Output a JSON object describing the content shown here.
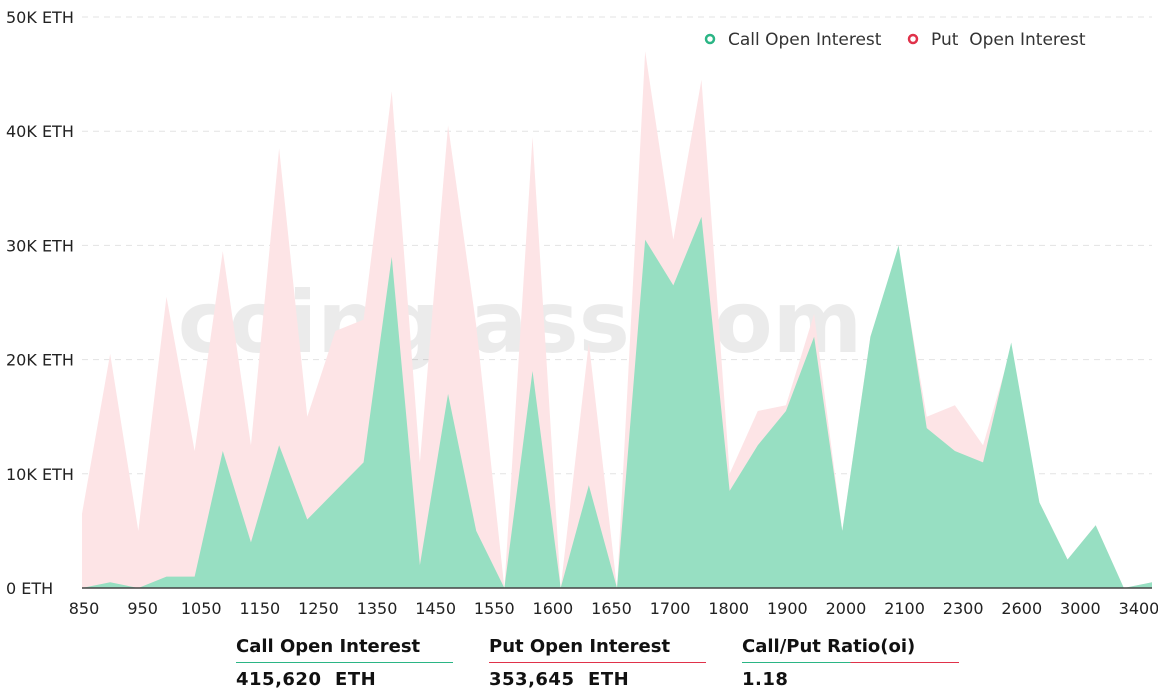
{
  "chart_data": {
    "type": "area",
    "y_unit": "ETH",
    "ylim": [
      0,
      50000
    ],
    "y_ticks": [
      "0 ETH",
      "10K ETH",
      "20K ETH",
      "30K ETH",
      "40K ETH",
      "50K ETH"
    ],
    "y_tick_values": [
      0,
      10000,
      20000,
      30000,
      40000,
      50000
    ],
    "x_tick_labels": [
      "850",
      "950",
      "1050",
      "1150",
      "1250",
      "1350",
      "1450",
      "1550",
      "1600",
      "1650",
      "1700",
      "1800",
      "1900",
      "2000",
      "2100",
      "2300",
      "2600",
      "3000",
      "3400"
    ],
    "grid": true,
    "legend_position": "top-right",
    "watermark": "coinglass.com",
    "series": [
      {
        "name": "Put  Open Interest",
        "color": "#fde4e6",
        "marker_color": "#e0324a",
        "values": [
          6500,
          20500,
          5000,
          25500,
          12000,
          29500,
          12500,
          38500,
          15000,
          22500,
          23500,
          43500,
          11000,
          40500,
          23000,
          0,
          39500,
          0,
          21500,
          0,
          47000,
          30500,
          44500,
          10000,
          15500,
          16000,
          24000,
          5000,
          22000,
          29500,
          15000,
          16000,
          12500,
          21000,
          7500,
          2500,
          5500,
          0,
          500
        ]
      },
      {
        "name": "Call Open Interest",
        "color": "#97dfc2",
        "marker_color": "#2bb585",
        "values": [
          0,
          500,
          0,
          1000,
          1000,
          12000,
          4000,
          12500,
          6000,
          8500,
          11000,
          29000,
          2000,
          17000,
          5000,
          0,
          19000,
          0,
          9000,
          0,
          30500,
          26500,
          32500,
          8500,
          12500,
          15500,
          22000,
          5000,
          22000,
          30000,
          14000,
          12000,
          11000,
          21500,
          7500,
          2500,
          5500,
          0,
          500
        ]
      }
    ]
  },
  "stats": [
    {
      "label": "Call Open Interest",
      "value": "415,620  ETH"
    },
    {
      "label": "Put Open Interest",
      "value": "353,645  ETH"
    },
    {
      "label": "Call/Put Ratio(oi)",
      "value": "1.18"
    }
  ]
}
